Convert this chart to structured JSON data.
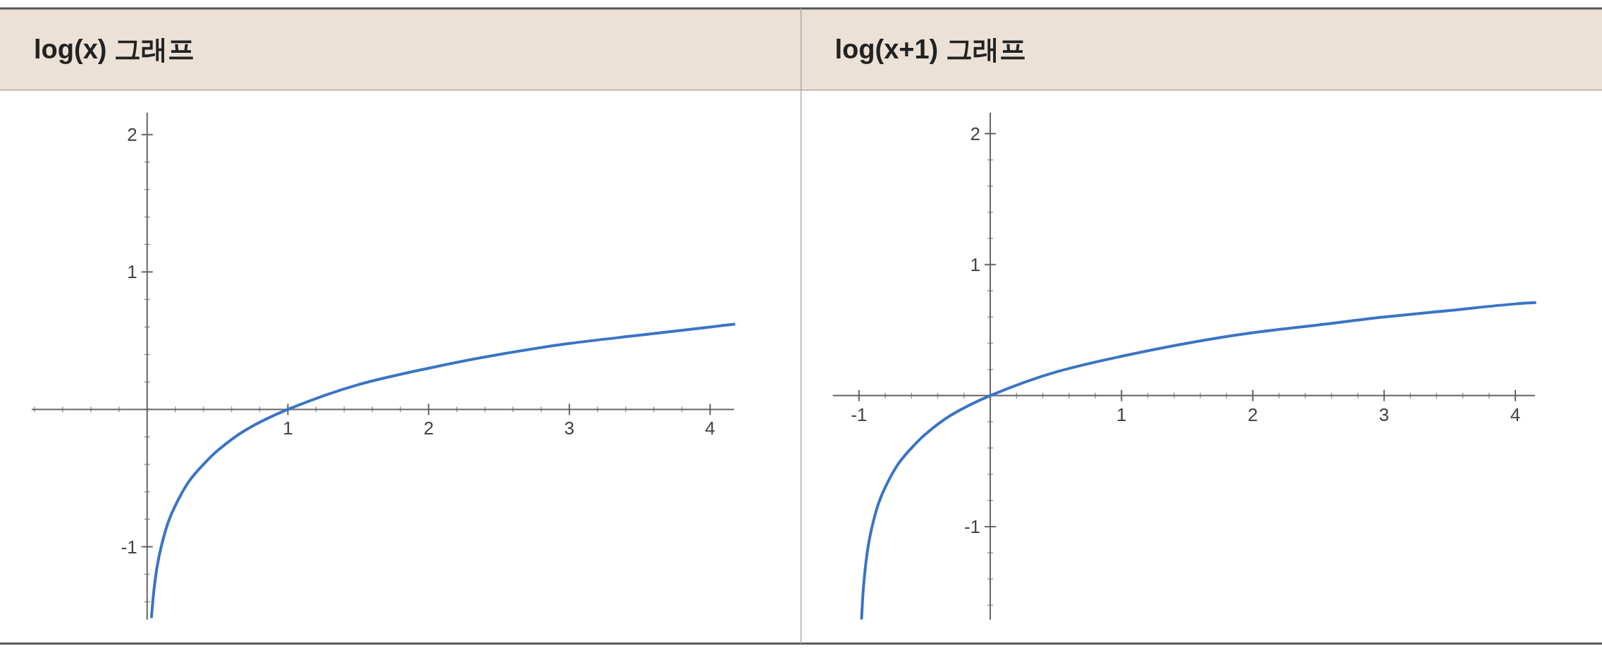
{
  "chart_data": [
    {
      "type": "line",
      "title": "log(x) 그래프",
      "color": "#3a74c4",
      "x": [
        0.031,
        0.04,
        0.05,
        0.07,
        0.1,
        0.15,
        0.2,
        0.3,
        0.4,
        0.5,
        0.7,
        1,
        1.5,
        2,
        2.5,
        3,
        3.5,
        4,
        4.17
      ],
      "values": [
        -1.51,
        -1.4,
        -1.3,
        -1.15,
        -1,
        -0.82,
        -0.7,
        -0.52,
        -0.4,
        -0.3,
        -0.15,
        0,
        0.18,
        0.3,
        0.4,
        0.48,
        0.54,
        0.6,
        0.62
      ],
      "xlim": [
        -0.82,
        4.17
      ],
      "ylim": [
        -1.53,
        2.16
      ],
      "xticks": [
        1,
        2,
        3,
        4
      ],
      "yticks": [
        -1,
        1,
        2
      ]
    },
    {
      "type": "line",
      "title": "log(x+1) 그래프",
      "color": "#3a74c4",
      "x": [
        -0.98,
        -0.97,
        -0.96,
        -0.95,
        -0.93,
        -0.9,
        -0.85,
        -0.8,
        -0.7,
        -0.6,
        -0.5,
        -0.3,
        0,
        0.5,
        1,
        1.5,
        2,
        2.5,
        3,
        3.5,
        4,
        4.15
      ],
      "values": [
        -1.7,
        -1.52,
        -1.4,
        -1.3,
        -1.15,
        -1,
        -0.82,
        -0.7,
        -0.52,
        -0.4,
        -0.3,
        -0.15,
        0,
        0.18,
        0.3,
        0.4,
        0.48,
        0.54,
        0.6,
        0.65,
        0.7,
        0.71
      ],
      "xlim": [
        -1.2,
        4.15
      ],
      "ylim": [
        -1.71,
        2.16
      ],
      "xticks": [
        -1,
        1,
        2,
        3,
        4
      ],
      "yticks": [
        -1,
        1,
        2
      ]
    }
  ]
}
